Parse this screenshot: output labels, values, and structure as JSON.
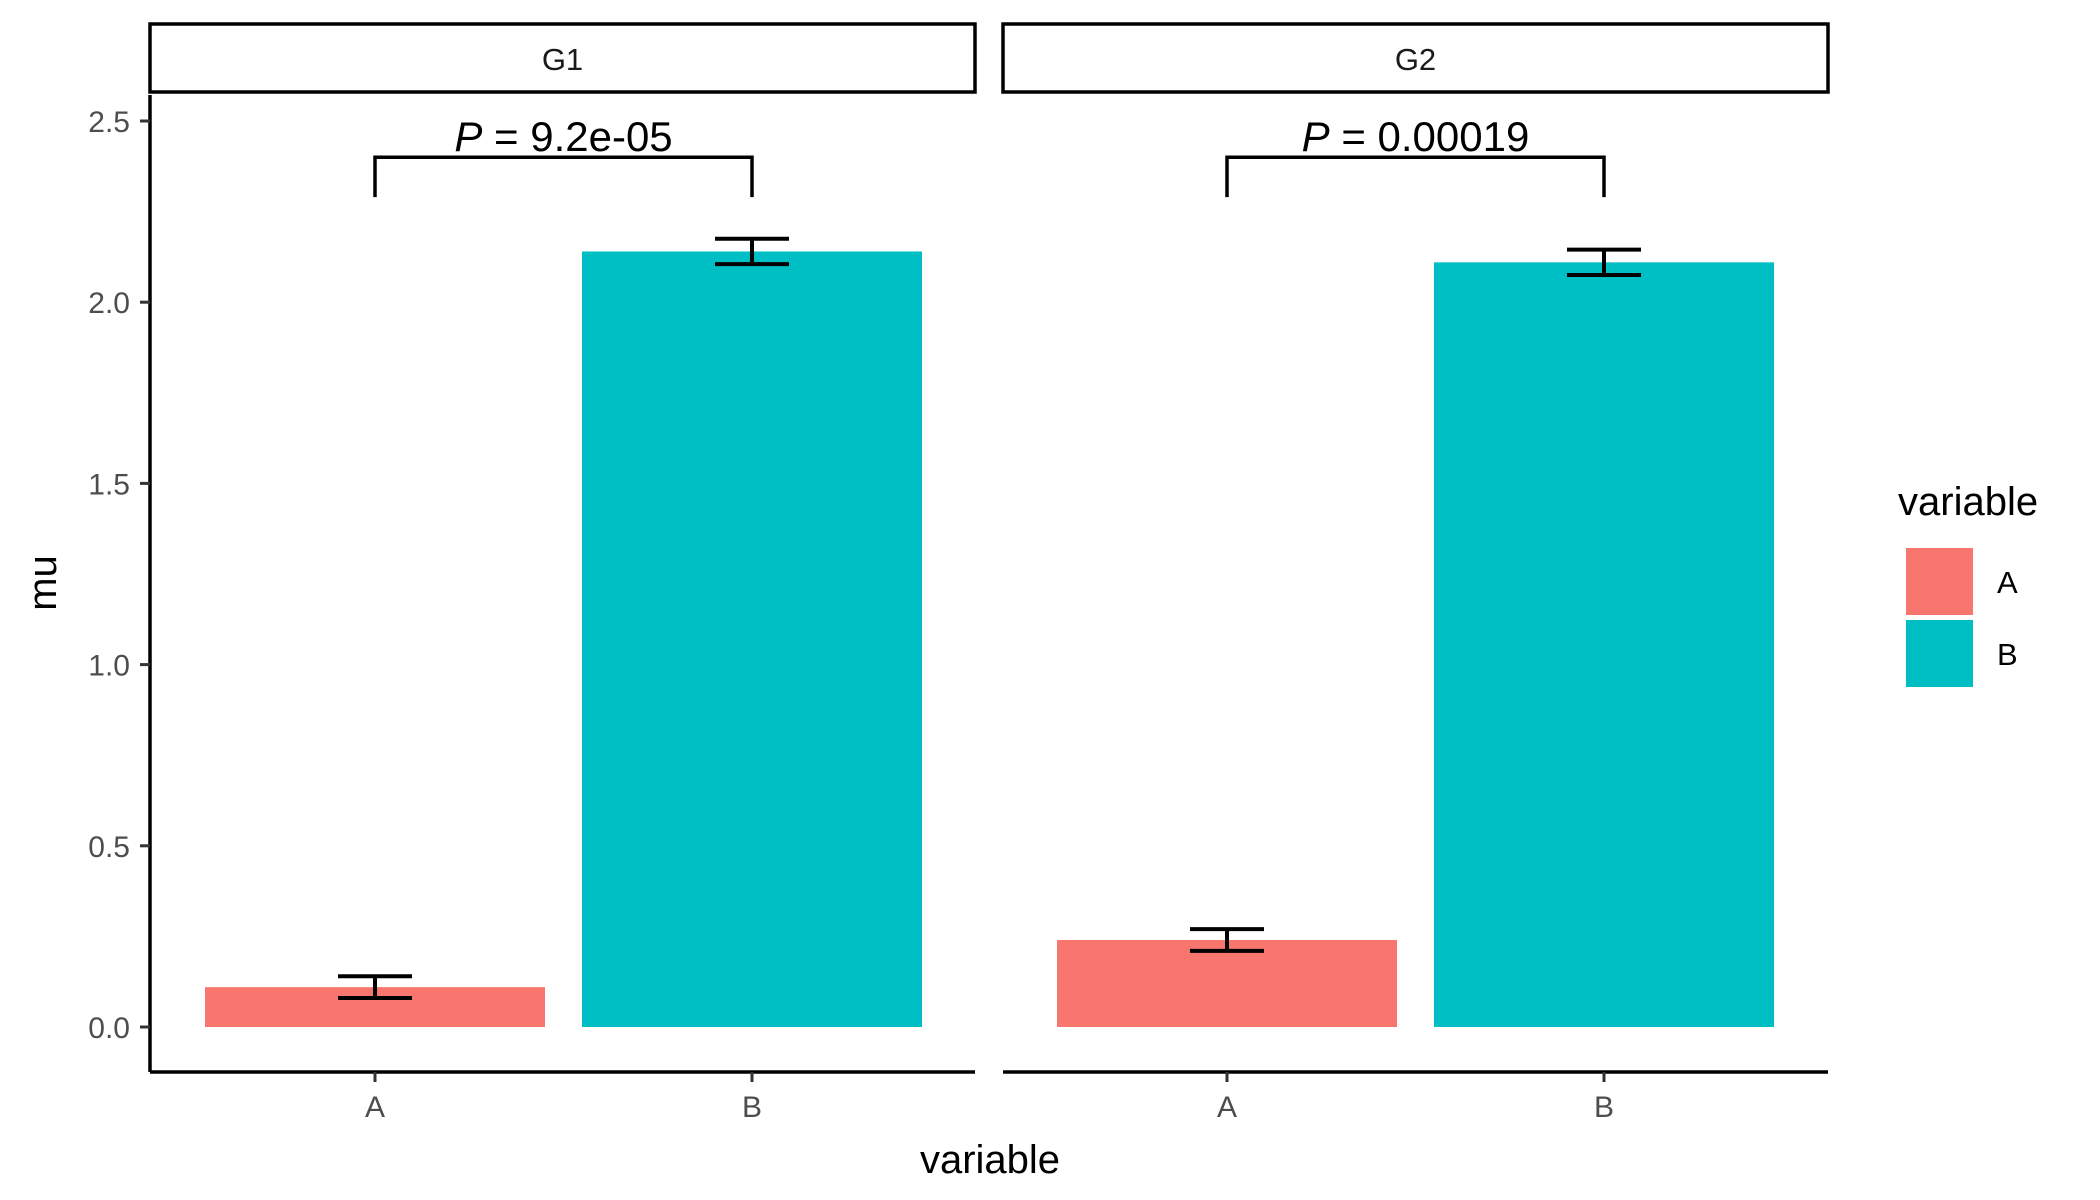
{
  "chart_data": {
    "type": "bar",
    "xlabel": "variable",
    "ylabel": "mu",
    "ylim": [
      -0.12,
      2.6
    ],
    "yticks": [
      0.0,
      0.5,
      1.0,
      1.5,
      2.0,
      2.5
    ],
    "ytick_labels": [
      "0.0",
      "0.5",
      "1.0",
      "1.5",
      "2.0",
      "2.5"
    ],
    "categories": [
      "A",
      "B"
    ],
    "colors": {
      "A": "#F8766D",
      "B": "#00BFC4"
    },
    "legend": {
      "title": "variable",
      "position": "right",
      "entries": [
        {
          "label": "A",
          "color": "#F8766D"
        },
        {
          "label": "B",
          "color": "#00BFC4"
        }
      ]
    },
    "facets": [
      {
        "name": "G1",
        "values": [
          0.11,
          2.14
        ],
        "errors": [
          [
            0.08,
            0.14
          ],
          [
            2.105,
            2.175
          ]
        ],
        "p_label": "P",
        "p_value": "= 9.2e-05",
        "bracket_y": 2.4,
        "bracket_tip_y": 2.29
      },
      {
        "name": "G2",
        "values": [
          0.24,
          2.11
        ],
        "errors": [
          [
            0.21,
            0.27
          ],
          [
            2.075,
            2.145
          ]
        ],
        "p_label": "P",
        "p_value": "= 0.00019",
        "bracket_y": 2.4,
        "bracket_tip_y": 2.29
      }
    ]
  }
}
